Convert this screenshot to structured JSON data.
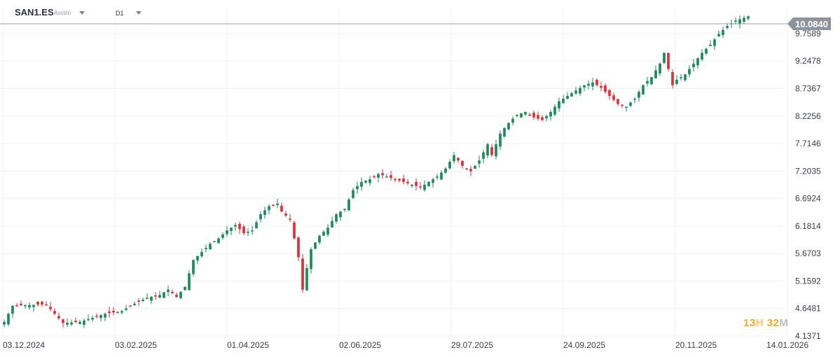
{
  "toolbar": {
    "symbol": "SAN1.ES",
    "symbol_type": "Acción",
    "timeframe": "D1"
  },
  "timer": {
    "hours": "13",
    "hours_unit": "H",
    "minutes": "32",
    "minutes_unit": "M"
  },
  "colors": {
    "up": "#1f8a5b",
    "down": "#d9323c",
    "grid": "#eef0f3",
    "axis_text": "#3a3f47",
    "price_tag": "#8e949c"
  },
  "chart_data": {
    "type": "candlestick",
    "y_ticks": [
      "9.7589",
      "9.2478",
      "8.7367",
      "8.2256",
      "7.7146",
      "7.2035",
      "6.6924",
      "6.1814",
      "5.6703",
      "5.1592",
      "4.6481",
      "4.1371"
    ],
    "x_ticks": [
      "03.12.2024",
      "03.02.2025",
      "01.04.2025",
      "02.06.2025",
      "29.07.2025",
      "24.09.2025",
      "20.11.2025",
      "14.01.2026"
    ],
    "current_price": "10.0840",
    "ylim": [
      4.1371,
      10.2
    ],
    "xlim": [
      "03.12.2024",
      "14.01.2026"
    ],
    "grid": true,
    "close_series": [
      [
        0,
        4.4
      ],
      [
        2,
        4.7
      ],
      [
        8,
        4.72
      ],
      [
        10,
        4.72
      ],
      [
        12,
        4.55
      ],
      [
        14,
        4.38
      ],
      [
        18,
        4.4
      ],
      [
        20,
        4.45
      ],
      [
        24,
        4.55
      ],
      [
        28,
        4.6
      ],
      [
        30,
        4.7
      ],
      [
        34,
        4.85
      ],
      [
        37,
        4.9
      ],
      [
        39,
        5.0
      ],
      [
        41,
        4.86
      ],
      [
        43,
        5.05
      ],
      [
        45,
        5.55
      ],
      [
        47,
        5.7
      ],
      [
        49,
        5.85
      ],
      [
        51,
        5.95
      ],
      [
        53,
        6.1
      ],
      [
        55,
        6.2
      ],
      [
        57,
        6.05
      ],
      [
        59,
        6.1
      ],
      [
        61,
        6.4
      ],
      [
        63,
        6.55
      ],
      [
        65,
        6.6
      ],
      [
        66,
        6.45
      ],
      [
        68,
        6.3
      ],
      [
        70,
        5.6
      ],
      [
        71,
        5.0
      ],
      [
        72,
        5.4
      ],
      [
        73,
        5.75
      ],
      [
        75,
        6.0
      ],
      [
        77,
        6.15
      ],
      [
        79,
        6.4
      ],
      [
        81,
        6.5
      ],
      [
        83,
        6.85
      ],
      [
        85,
        7.0
      ],
      [
        87,
        7.05
      ],
      [
        89,
        7.15
      ],
      [
        91,
        7.1
      ],
      [
        93,
        7.05
      ],
      [
        95,
        7.0
      ],
      [
        97,
        6.95
      ],
      [
        99,
        6.9
      ],
      [
        101,
        7.0
      ],
      [
        103,
        7.1
      ],
      [
        105,
        7.25
      ],
      [
        107,
        7.5
      ],
      [
        109,
        7.3
      ],
      [
        111,
        7.2
      ],
      [
        113,
        7.4
      ],
      [
        115,
        7.7
      ],
      [
        116,
        7.5
      ],
      [
        118,
        7.9
      ],
      [
        120,
        8.1
      ],
      [
        122,
        8.25
      ],
      [
        124,
        8.3
      ],
      [
        126,
        8.2
      ],
      [
        128,
        8.15
      ],
      [
        130,
        8.3
      ],
      [
        132,
        8.5
      ],
      [
        134,
        8.6
      ],
      [
        136,
        8.7
      ],
      [
        138,
        8.8
      ],
      [
        140,
        8.85
      ],
      [
        142,
        8.75
      ],
      [
        144,
        8.6
      ],
      [
        146,
        8.45
      ],
      [
        148,
        8.4
      ],
      [
        150,
        8.55
      ],
      [
        152,
        8.8
      ],
      [
        154,
        8.95
      ],
      [
        156,
        9.2
      ],
      [
        157,
        9.4
      ],
      [
        158,
        9.1
      ],
      [
        159,
        8.8
      ],
      [
        160,
        8.9
      ],
      [
        162,
        9.0
      ],
      [
        164,
        9.2
      ],
      [
        166,
        9.4
      ],
      [
        168,
        9.55
      ],
      [
        170,
        9.75
      ],
      [
        172,
        9.9
      ],
      [
        174,
        10.0
      ],
      [
        176,
        10.05
      ],
      [
        177,
        10.08
      ]
    ]
  }
}
